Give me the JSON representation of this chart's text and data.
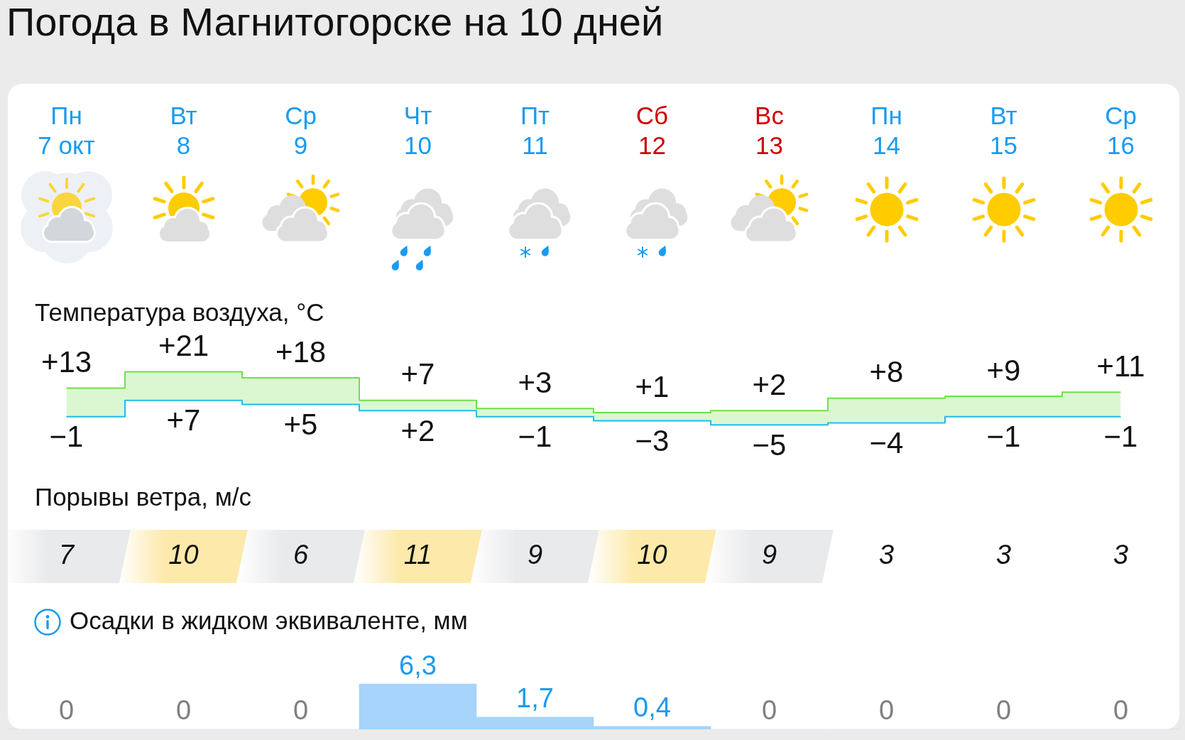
{
  "chart_data": [
    {
      "type": "step",
      "title": "Погода в Магнитогорске на 10 дней",
      "subtitle": "Температура воздуха, °C",
      "categories": [
        "Пн 7 окт",
        "Вт 8",
        "Ср 9",
        "Чт 10",
        "Пт 11",
        "Сб 12",
        "Вс 13",
        "Пн 14",
        "Вт 15",
        "Ср 16"
      ],
      "tick_labels": "x",
      "series": [
        {
          "color": "#6ee04a",
          "values": [
            13,
            21,
            18,
            7,
            3,
            1,
            2,
            8,
            9,
            11
          ],
          "value_labels": [
            "+13",
            "+21",
            "+18",
            "+7",
            "+3",
            "+1",
            "+2",
            "+8",
            "+9",
            "+11"
          ],
          "lower": [
            -1,
            7,
            5,
            2,
            -1,
            -3,
            -5,
            -4,
            -1,
            -1
          ],
          "upper": [
            13,
            21,
            18,
            7,
            3,
            1,
            2,
            8,
            9,
            11
          ]
        },
        {
          "color": "#22bce8",
          "values": [
            -1,
            7,
            5,
            2,
            -1,
            -3,
            -5,
            -4,
            -1,
            -1
          ],
          "value_labels": [
            "−1",
            "+7",
            "+5",
            "+2",
            "−1",
            "−3",
            "−5",
            "−4",
            "−1",
            "−1"
          ]
        }
      ]
    },
    {
      "type": "other",
      "title": "Порывы ветра, м/с",
      "values": [
        7,
        10,
        6,
        11,
        9,
        10,
        9,
        3,
        3,
        3
      ],
      "colors": [
        "#e9eaec",
        "#fde9a9",
        "#e9eaec",
        "#fde9a9",
        "#e9eaec",
        "#fde9a9",
        "#e9eaec",
        "#ffffff",
        "#ffffff",
        "#ffffff"
      ],
      "data_labels": true
    },
    {
      "type": "bar",
      "title": "Осадки в жидком эквиваленте, мм",
      "categories": [
        null,
        null,
        null,
        null,
        null,
        null,
        null,
        null,
        null,
        null
      ],
      "values": [
        0,
        0,
        0,
        6.3,
        1.7,
        0.4,
        0,
        0,
        0,
        0
      ],
      "color": "#a6d4fa",
      "value_labels": [
        "0",
        "0",
        "0",
        "6,3",
        "1,7",
        "0,4",
        "0",
        "0",
        "0",
        "0"
      ],
      "tick_labels": false
    }
  ]
}
